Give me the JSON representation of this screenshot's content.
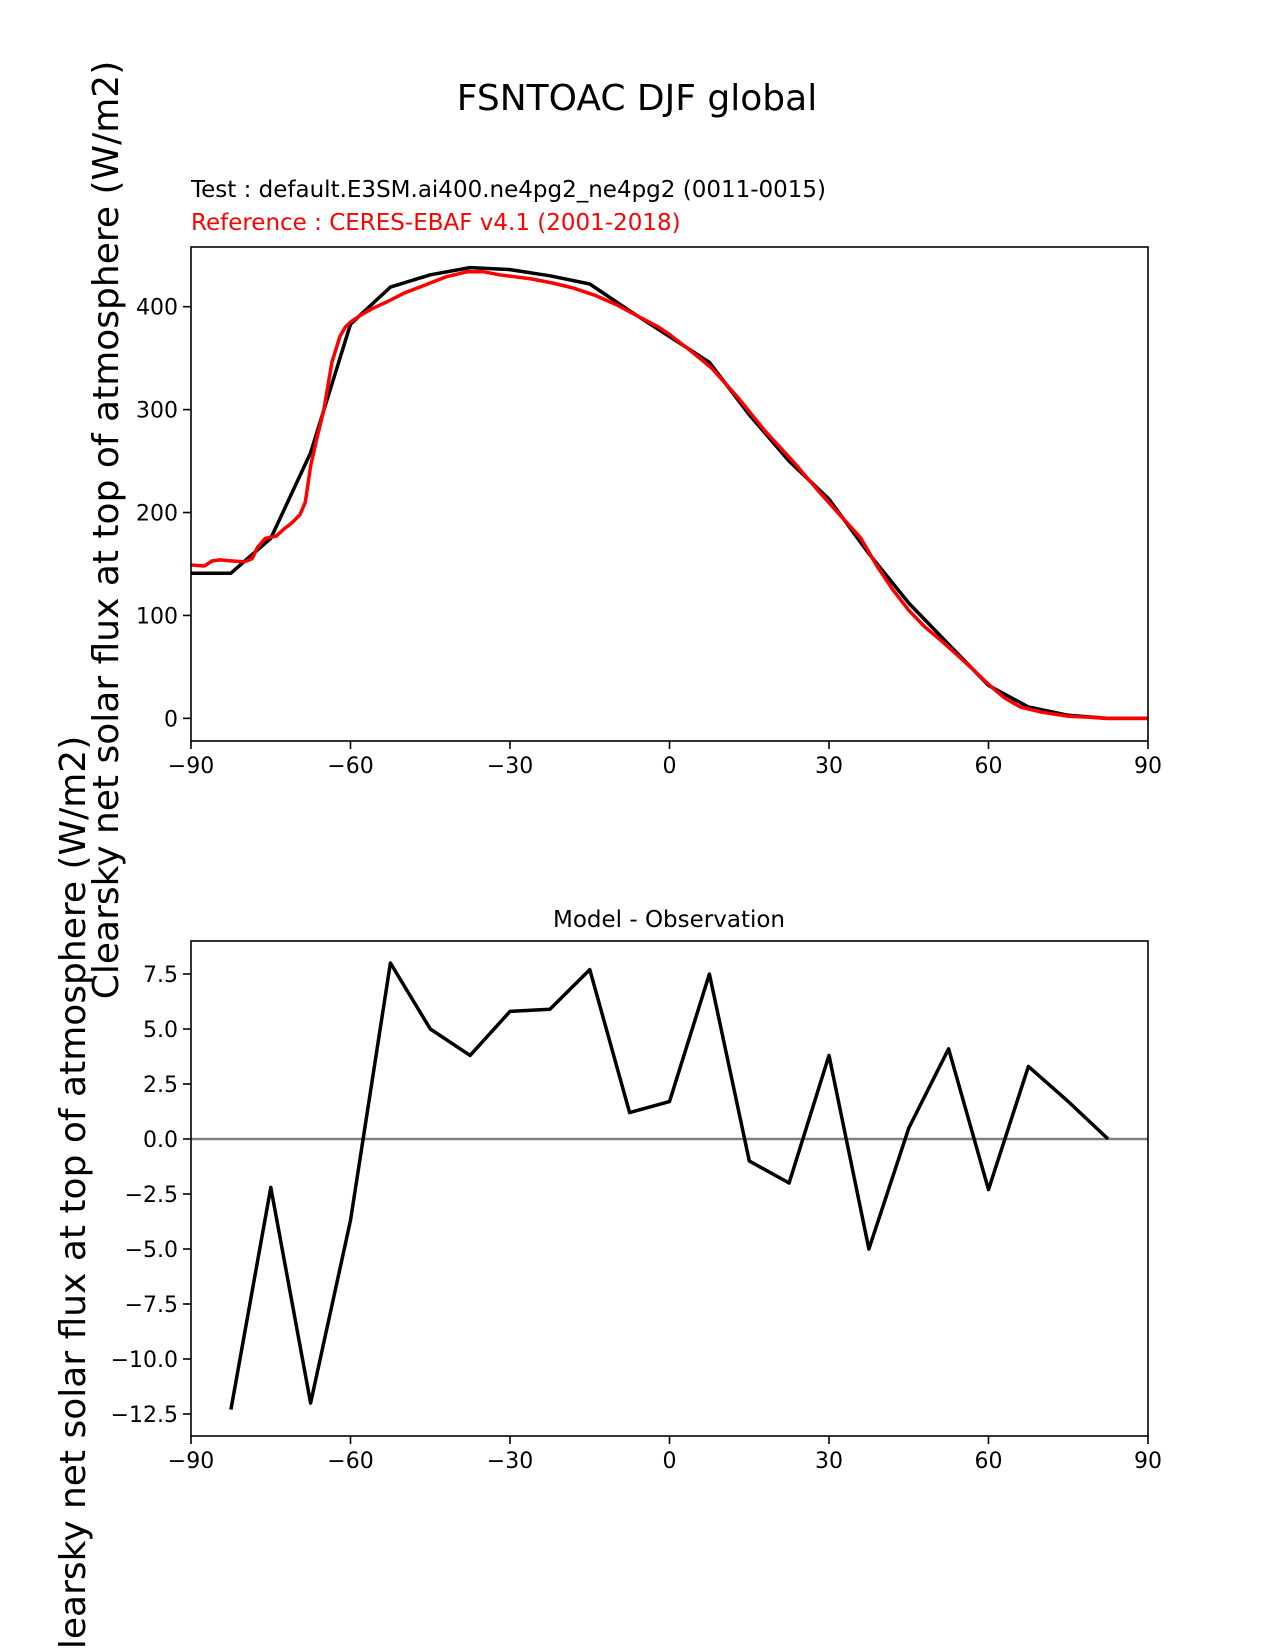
{
  "figure": {
    "suptitle": "FSNTOAC DJF global",
    "ylabel": "Clearsky net solar flux at top of atmosphere (W/m2)"
  },
  "colors": {
    "test": "#000000",
    "reference": "#ff0000",
    "zero_line": "#808080"
  },
  "chart_data": [
    {
      "type": "line",
      "test_label": "Test : default.E3SM.ai400.ne4pg2_ne4pg2 (0011-0015)",
      "reference_label": "Reference : CERES-EBAF v4.1 (2001-2018)",
      "xlim": [
        -90,
        90
      ],
      "ylim": [
        -22,
        458
      ],
      "xticks": [
        -90,
        -60,
        -30,
        0,
        30,
        60,
        90
      ],
      "xtick_labels": [
        "−90",
        "−60",
        "−30",
        "0",
        "30",
        "60",
        "90"
      ],
      "yticks": [
        0,
        100,
        200,
        300,
        400
      ],
      "ytick_labels": [
        "0",
        "100",
        "200",
        "300",
        "400"
      ],
      "series": [
        {
          "role": "test",
          "x": [
            -90,
            -82.5,
            -75,
            -67.5,
            -60,
            -52.5,
            -45,
            -37.5,
            -30,
            -22.5,
            -15,
            -7.5,
            0,
            7.5,
            15,
            22.5,
            30,
            37.5,
            45,
            52.5,
            60,
            67.5,
            75,
            82.5,
            90
          ],
          "y": [
            141,
            141,
            175,
            258,
            383,
            419,
            431,
            438,
            436,
            430,
            422,
            396,
            371,
            346,
            295,
            250,
            213,
            160,
            112,
            72,
            32,
            11,
            3,
            0,
            0
          ]
        },
        {
          "role": "reference",
          "x": [
            -90,
            -87.5,
            -86,
            -84.5,
            -82.5,
            -80,
            -78.5,
            -77.5,
            -76,
            -74,
            -72.5,
            -71,
            -69.5,
            -68.5,
            -67.5,
            -66.5,
            -65,
            -63.5,
            -62,
            -61,
            -60,
            -58,
            -56,
            -53,
            -50,
            -46,
            -42,
            -38,
            -35,
            -32,
            -29,
            -26,
            -22,
            -18,
            -14,
            -10,
            -6,
            -2,
            0,
            4,
            8,
            13,
            18,
            23,
            28,
            32,
            36,
            39,
            42,
            45,
            48,
            51,
            54,
            57,
            60,
            63,
            66,
            70,
            75,
            79,
            82,
            86,
            90
          ],
          "y": [
            149,
            148,
            153,
            154,
            153,
            152,
            155,
            166,
            175,
            177,
            184,
            190,
            198,
            210,
            245,
            268,
            300,
            346,
            371,
            380,
            385,
            392,
            398,
            405,
            413,
            421,
            429,
            434,
            434,
            431,
            429,
            427,
            423,
            418,
            411,
            402,
            391,
            380,
            373,
            357,
            340,
            311,
            279,
            251,
            221,
            198,
            175,
            148,
            125,
            105,
            89,
            76,
            62,
            48,
            33,
            20,
            11,
            6,
            2,
            1,
            0,
            0,
            0
          ]
        }
      ]
    },
    {
      "type": "line",
      "title": "Model - Observation",
      "xlim": [
        -90,
        90
      ],
      "ylim": [
        -13.5,
        9.0
      ],
      "xticks": [
        -90,
        -60,
        -30,
        0,
        30,
        60,
        90
      ],
      "xtick_labels": [
        "−90",
        "−60",
        "−30",
        "0",
        "30",
        "60",
        "90"
      ],
      "yticks": [
        7.5,
        5.0,
        2.5,
        0.0,
        -2.5,
        -5.0,
        -7.5,
        -10.0,
        -12.5
      ],
      "ytick_labels": [
        "7.5",
        "5.0",
        "2.5",
        "0.0",
        "−2.5",
        "−5.0",
        "−7.5",
        "−10.0",
        "−12.5"
      ],
      "zero_line": 0,
      "series": [
        {
          "role": "difference",
          "x": [
            -82.5,
            -75,
            -67.5,
            -60,
            -52.5,
            -45,
            -37.5,
            -30,
            -22.5,
            -15,
            -7.5,
            0,
            7.5,
            15,
            22.5,
            30,
            37.5,
            45,
            52.5,
            60,
            67.5,
            75,
            82.5
          ],
          "y": [
            -12.3,
            -2.2,
            -12.0,
            -3.7,
            8.0,
            5.0,
            3.8,
            5.8,
            5.9,
            7.7,
            1.2,
            1.7,
            7.5,
            -1.0,
            -2.0,
            3.8,
            -5.0,
            0.5,
            4.1,
            -2.3,
            3.3,
            1.7,
            0.0
          ]
        }
      ]
    }
  ]
}
